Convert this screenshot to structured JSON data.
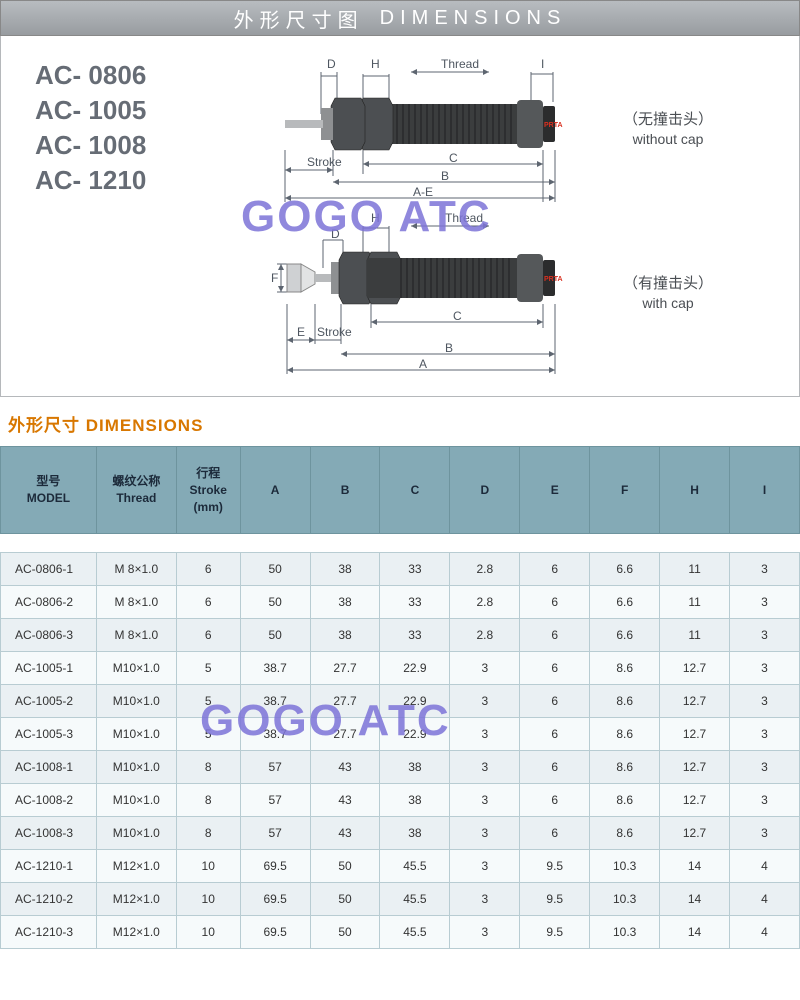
{
  "header": {
    "title_cn": "外形尺寸图",
    "title_en": "DIMENSIONS"
  },
  "models": [
    "AC- 0806",
    "AC- 1005",
    "AC- 1008",
    "AC- 1210"
  ],
  "diagram": {
    "labels": {
      "D": "D",
      "H": "H",
      "Thread": "Thread",
      "I": "I",
      "Stroke": "Stroke",
      "C": "C",
      "B": "B",
      "A_minus_E": "A-E",
      "A": "A",
      "E": "E",
      "F": "F"
    },
    "variant1": {
      "cn": "（无撞击头）",
      "en": "without cap"
    },
    "variant2": {
      "cn": "（有撞击头）",
      "en": "with  cap"
    },
    "brand_mark": "PRTA"
  },
  "watermark": "GOGO ATC",
  "table_title": {
    "cn": "外形尺寸",
    "en": "DIMENSIONS"
  },
  "table": {
    "columns": [
      {
        "cn": "型号",
        "en": "MODEL",
        "width": "12%",
        "align": "left"
      },
      {
        "cn": "螺纹公称",
        "en": "Thread",
        "width": "10%",
        "align": "center"
      },
      {
        "cn": "行程",
        "en": "Stroke",
        "sub": "(mm)",
        "width": "8%",
        "align": "center"
      },
      {
        "cn": "",
        "en": "A",
        "width": "8.75%",
        "align": "center"
      },
      {
        "cn": "",
        "en": "B",
        "width": "8.75%",
        "align": "center"
      },
      {
        "cn": "",
        "en": "C",
        "width": "8.75%",
        "align": "center"
      },
      {
        "cn": "",
        "en": "D",
        "width": "8.75%",
        "align": "center"
      },
      {
        "cn": "",
        "en": "E",
        "width": "8.75%",
        "align": "center"
      },
      {
        "cn": "",
        "en": "F",
        "width": "8.75%",
        "align": "center"
      },
      {
        "cn": "",
        "en": "H",
        "width": "8.75%",
        "align": "center"
      },
      {
        "cn": "",
        "en": "I",
        "width": "8.75%",
        "align": "center"
      }
    ],
    "rows": [
      [
        "AC-0806-1",
        "M  8×1.0",
        "6",
        "50",
        "38",
        "33",
        "2.8",
        "6",
        "6.6",
        "11",
        "3"
      ],
      [
        "AC-0806-2",
        "M  8×1.0",
        "6",
        "50",
        "38",
        "33",
        "2.8",
        "6",
        "6.6",
        "11",
        "3"
      ],
      [
        "AC-0806-3",
        "M  8×1.0",
        "6",
        "50",
        "38",
        "33",
        "2.8",
        "6",
        "6.6",
        "11",
        "3"
      ],
      [
        "AC-1005-1",
        "M10×1.0",
        "5",
        "38.7",
        "27.7",
        "22.9",
        "3",
        "6",
        "8.6",
        "12.7",
        "3"
      ],
      [
        "AC-1005-2",
        "M10×1.0",
        "5",
        "38.7",
        "27.7",
        "22.9",
        "3",
        "6",
        "8.6",
        "12.7",
        "3"
      ],
      [
        "AC-1005-3",
        "M10×1.0",
        "5",
        "38.7",
        "27.7",
        "22.9",
        "3",
        "6",
        "8.6",
        "12.7",
        "3"
      ],
      [
        "AC-1008-1",
        "M10×1.0",
        "8",
        "57",
        "43",
        "38",
        "3",
        "6",
        "8.6",
        "12.7",
        "3"
      ],
      [
        "AC-1008-2",
        "M10×1.0",
        "8",
        "57",
        "43",
        "38",
        "3",
        "6",
        "8.6",
        "12.7",
        "3"
      ],
      [
        "AC-1008-3",
        "M10×1.0",
        "8",
        "57",
        "43",
        "38",
        "3",
        "6",
        "8.6",
        "12.7",
        "3"
      ],
      [
        "AC-1210-1",
        "M12×1.0",
        "10",
        "69.5",
        "50",
        "45.5",
        "3",
        "9.5",
        "10.3",
        "14",
        "4"
      ],
      [
        "AC-1210-2",
        "M12×1.0",
        "10",
        "69.5",
        "50",
        "45.5",
        "3",
        "9.5",
        "10.3",
        "14",
        "4"
      ],
      [
        "AC-1210-3",
        "M12×1.0",
        "10",
        "69.5",
        "50",
        "45.5",
        "3",
        "9.5",
        "10.3",
        "14",
        "4"
      ]
    ],
    "header_bg": "#84aab6",
    "row_bg_odd": "#f6fafb",
    "row_bg_even": "#eaf0f3",
    "border_color": "#b8ccd2"
  }
}
